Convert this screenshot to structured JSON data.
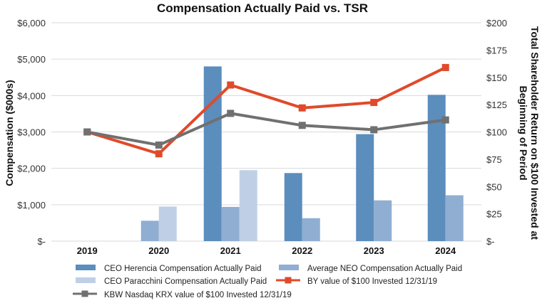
{
  "chart_data": {
    "type": "bar",
    "title": "Compensation Actually Paid vs. TSR",
    "ylabel": "Compensation ($000s)",
    "y2label_line1": "Total Shareholder Return on $100 Invested at",
    "y2label_line2": "Beginning of Period",
    "categories": [
      "2019",
      "2020",
      "2021",
      "2022",
      "2023",
      "2024"
    ],
    "ylim": [
      0,
      6000
    ],
    "y2lim": [
      0,
      200
    ],
    "yticks": [
      {
        "value": 0,
        "label": "$-"
      },
      {
        "value": 1000,
        "label": "$1,000"
      },
      {
        "value": 2000,
        "label": "$2,000"
      },
      {
        "value": 3000,
        "label": "$3,000"
      },
      {
        "value": 4000,
        "label": "$4,000"
      },
      {
        "value": 5000,
        "label": "$5,000"
      },
      {
        "value": 6000,
        "label": "$6,000"
      }
    ],
    "y2ticks": [
      {
        "value": 0,
        "label": "$-"
      },
      {
        "value": 25,
        "label": "$25"
      },
      {
        "value": 50,
        "label": "$50"
      },
      {
        "value": 75,
        "label": "$75"
      },
      {
        "value": 100,
        "label": "$100"
      },
      {
        "value": 125,
        "label": "$125"
      },
      {
        "value": 150,
        "label": "$150"
      },
      {
        "value": 175,
        "label": "$175"
      },
      {
        "value": 200,
        "label": "$200"
      }
    ],
    "bar_series": [
      {
        "name": "CEO Herencia Compensation Actually Paid",
        "color": "#5b8dbd",
        "values": [
          null,
          null,
          4800,
          1870,
          2940,
          4020
        ]
      },
      {
        "name": "Average NEO Compensation Actually Paid",
        "color": "#8faed2",
        "values": [
          null,
          560,
          940,
          630,
          1120,
          1260
        ]
      },
      {
        "name": "CEO Paracchini Compensation Actually Paid",
        "color": "#bfd0e6",
        "values": [
          null,
          950,
          1950,
          null,
          null,
          null
        ]
      }
    ],
    "line_series": [
      {
        "name": "BY value of $100 Invested 12/31/19",
        "color": "#e04a2a",
        "values": [
          100,
          80,
          143,
          122,
          127,
          159
        ]
      },
      {
        "name": "KBW Nasdaq KRX value of $100 Invested 12/31/19",
        "color": "#707070",
        "values": [
          100,
          88,
          117,
          106,
          102,
          111
        ]
      }
    ],
    "legend": [
      {
        "label": "CEO Herencia Compensation Actually Paid",
        "kind": "bar",
        "color": "#5b8dbd"
      },
      {
        "label": "Average NEO Compensation Actually Paid",
        "kind": "bar",
        "color": "#8faed2"
      },
      {
        "label": "CEO Paracchini Compensation Actually Paid",
        "kind": "bar",
        "color": "#bfd0e6"
      },
      {
        "label": "BY value of $100 Invested 12/31/19",
        "kind": "line",
        "color": "#e04a2a"
      },
      {
        "label": "KBW Nasdaq KRX value of $100 Invested 12/31/19",
        "kind": "line",
        "color": "#707070"
      }
    ]
  }
}
